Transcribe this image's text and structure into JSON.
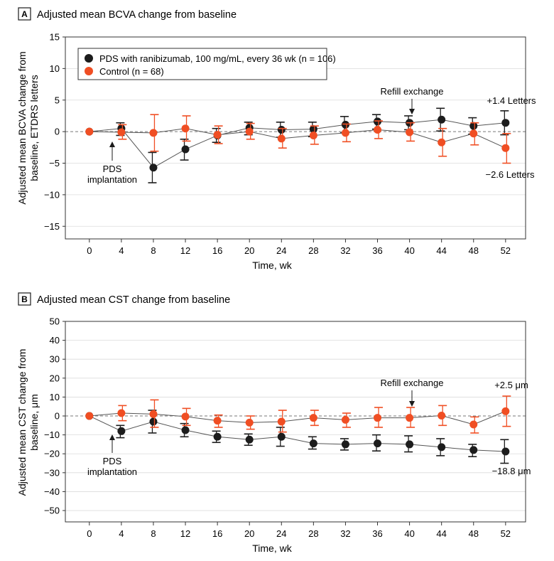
{
  "chart_data": [
    {
      "type": "line",
      "panel_label": "A",
      "title": "Adjusted mean BCVA change from baseline",
      "xlabel": "Time, wk",
      "ylabel_lines": [
        "Adjusted mean BCVA change from",
        "baseline, ETDRS letters"
      ],
      "x": [
        0,
        4,
        8,
        12,
        16,
        20,
        24,
        28,
        32,
        36,
        40,
        44,
        48,
        52
      ],
      "xticks": [
        0,
        4,
        8,
        12,
        16,
        20,
        24,
        28,
        32,
        36,
        40,
        44,
        48,
        52
      ],
      "ylim": [
        -17,
        15
      ],
      "yticks": [
        -15,
        -10,
        -5,
        0,
        5,
        10,
        15
      ],
      "reference_line": 0,
      "series": [
        {
          "name": "PDS with ranibizumab, 100 mg/mL, every 36 wk (n = 106)",
          "color": "#1c1c1c",
          "values": [
            0,
            0.5,
            -5.7,
            -2.8,
            -0.6,
            0.6,
            0.3,
            0.4,
            1.1,
            1.6,
            1.4,
            1.9,
            0.9,
            1.4
          ],
          "err_low": [
            0,
            -0.6,
            -8.1,
            -4.5,
            -1.7,
            -0.5,
            -0.9,
            -0.8,
            -0.2,
            0.4,
            0.3,
            0.1,
            -0.4,
            -0.5
          ],
          "err_high": [
            0,
            1.4,
            -3.3,
            -1.2,
            0.5,
            1.5,
            1.5,
            1.5,
            2.4,
            2.7,
            2.5,
            3.7,
            2.2,
            3.3
          ]
        },
        {
          "name": "Control (n = 68)",
          "color": "#f04e23",
          "values": [
            0,
            -0.1,
            -0.2,
            0.5,
            -0.5,
            0,
            -1.1,
            -0.6,
            -0.2,
            0.3,
            -0.1,
            -1.7,
            -0.3,
            -2.6
          ],
          "err_low": [
            0,
            -1.2,
            -3.1,
            -1.5,
            -1.9,
            -1.2,
            -2.6,
            -2,
            -1.6,
            -1.1,
            -1.5,
            -3.9,
            -2.1,
            -5
          ],
          "err_high": [
            0,
            1.1,
            2.7,
            2.5,
            0.9,
            1.3,
            0.5,
            0.9,
            1.2,
            1.7,
            1.4,
            0.5,
            1.4,
            -0.3
          ]
        }
      ],
      "annotations": [
        {
          "id": "pds",
          "lines": [
            "PDS",
            "implantation"
          ]
        },
        {
          "id": "refill",
          "lines": [
            "Refill exchange"
          ]
        },
        {
          "id": "end_pds",
          "lines": [
            "+1.4 Letters"
          ]
        },
        {
          "id": "end_ctrl",
          "lines": [
            "−2.6 Letters"
          ]
        }
      ]
    },
    {
      "type": "line",
      "panel_label": "B",
      "title": "Adjusted mean CST change from baseline",
      "xlabel": "Time, wk",
      "ylabel_lines": [
        "Adjusted mean CST change from",
        "baseline, μm"
      ],
      "x": [
        0,
        4,
        8,
        12,
        16,
        20,
        24,
        28,
        32,
        36,
        40,
        44,
        48,
        52
      ],
      "xticks": [
        0,
        4,
        8,
        12,
        16,
        20,
        24,
        28,
        32,
        36,
        40,
        44,
        48,
        52
      ],
      "ylim": [
        -56,
        50
      ],
      "yticks": [
        -50,
        -40,
        -30,
        -20,
        -10,
        0,
        10,
        20,
        30,
        40,
        50
      ],
      "reference_line": 0,
      "series": [
        {
          "name": "PDS with ranibizumab, 100 mg/mL, every 36 wk (n = 106)",
          "color": "#1c1c1c",
          "values": [
            0,
            -8,
            -3,
            -7.5,
            -11,
            -12.5,
            -11,
            -14.5,
            -15,
            -14.5,
            -15,
            -16.5,
            -18,
            -18.8
          ],
          "err_low": [
            0,
            -11.5,
            -9,
            -11,
            -14,
            -15.5,
            -16,
            -17.5,
            -18,
            -18.5,
            -19,
            -21,
            -21.5,
            -25
          ],
          "err_high": [
            0,
            -5,
            3,
            -4,
            -8,
            -9.5,
            -6,
            -11,
            -12,
            -10,
            -10.5,
            -12,
            -15,
            -12.5
          ]
        },
        {
          "name": "Control (n = 68)",
          "color": "#f04e23",
          "values": [
            0,
            1.5,
            1,
            -0.3,
            -2.5,
            -3.5,
            -3,
            -1,
            -2,
            -1,
            -1,
            0.2,
            -4.5,
            2.5
          ],
          "err_low": [
            0,
            -2.5,
            -6,
            -5,
            -6,
            -7,
            -8.5,
            -5,
            -6,
            -6,
            -6,
            -5,
            -9,
            -5.5
          ],
          "err_high": [
            0,
            5.5,
            8.5,
            4,
            0.5,
            0,
            3,
            3,
            1.5,
            4.5,
            4.5,
            5.5,
            -0.5,
            10.5
          ]
        }
      ],
      "annotations": [
        {
          "id": "pds",
          "lines": [
            "PDS",
            "implantation"
          ]
        },
        {
          "id": "refill",
          "lines": [
            "Refill exchange"
          ]
        },
        {
          "id": "end_ctrl",
          "lines": [
            "+2.5 μm"
          ]
        },
        {
          "id": "end_pds",
          "lines": [
            "−18.8 μm"
          ]
        }
      ]
    }
  ]
}
